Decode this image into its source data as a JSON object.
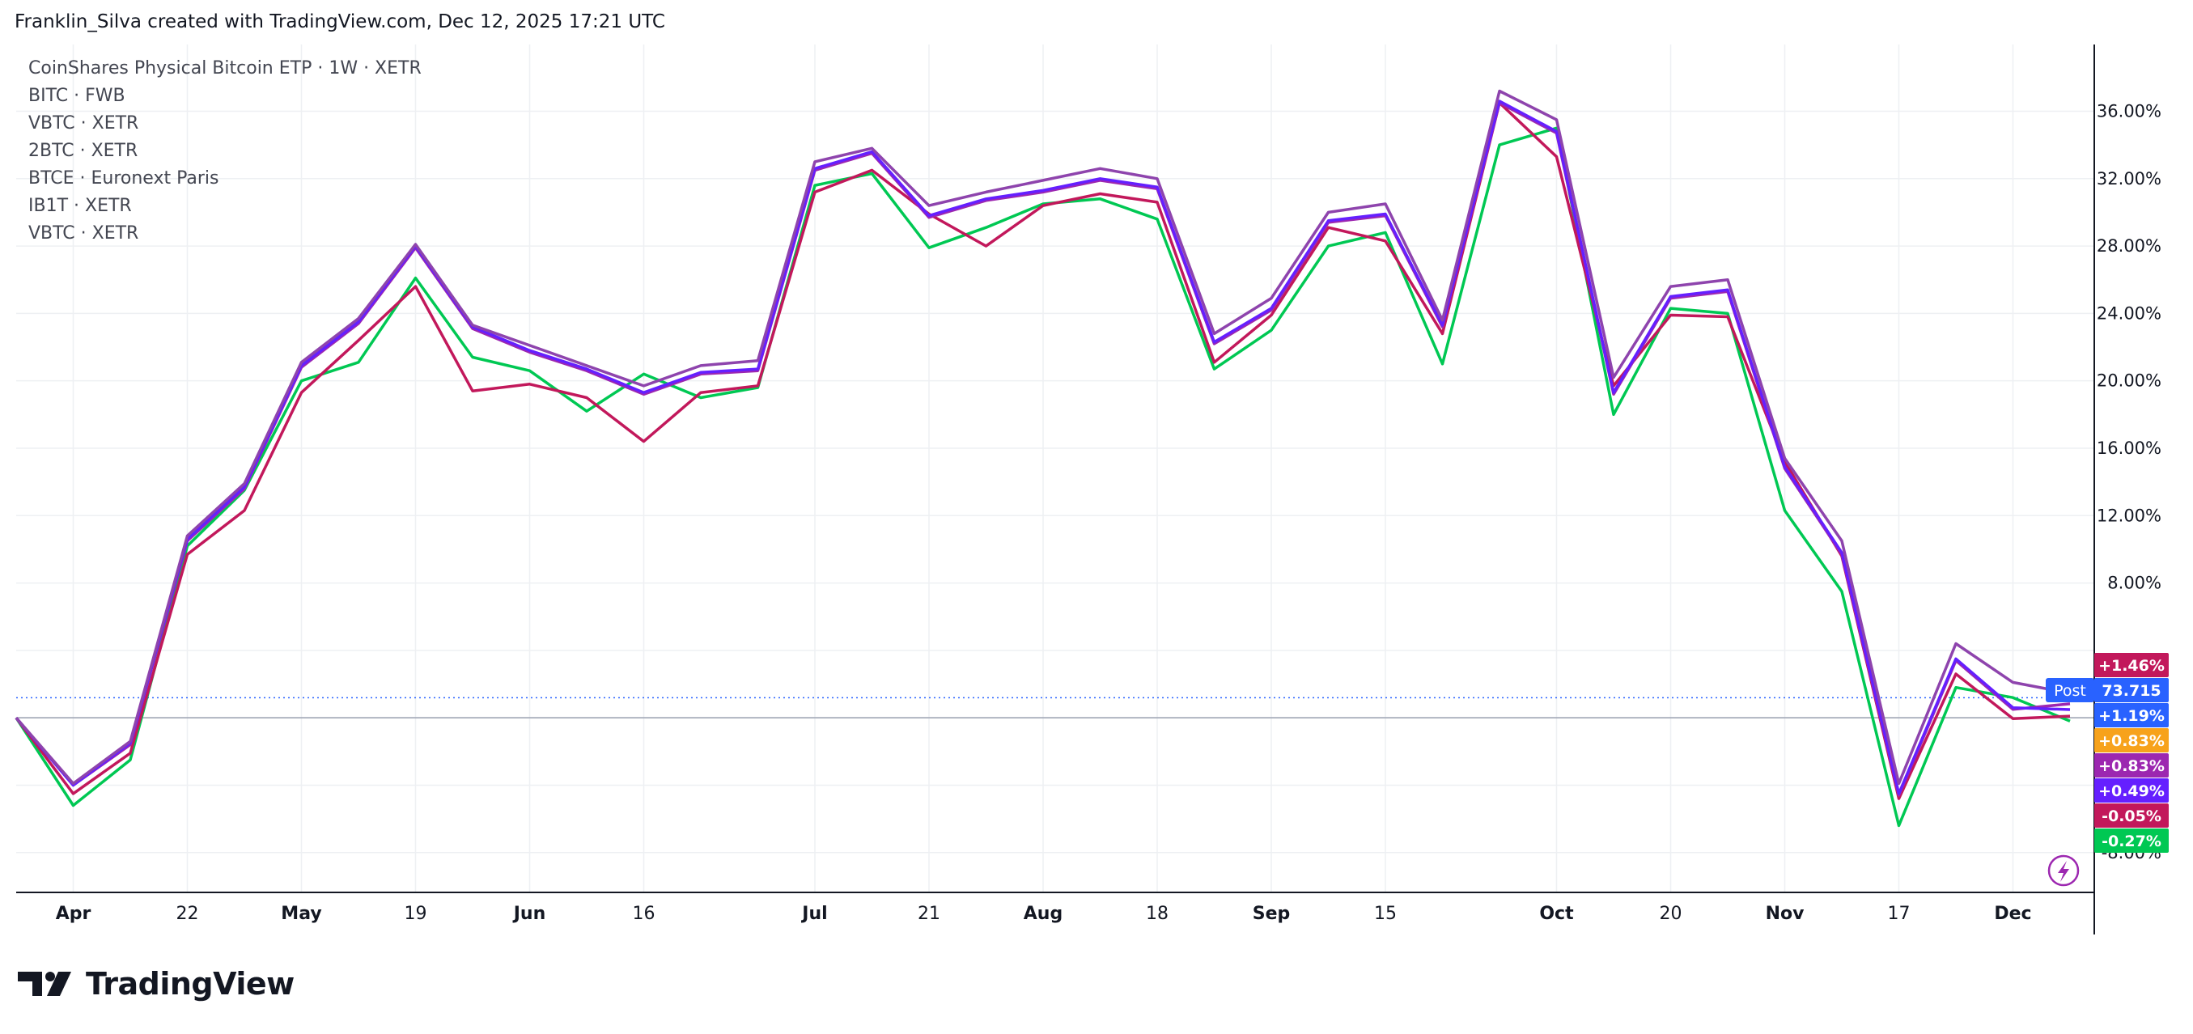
{
  "header": {
    "attribution": "Franklin_Silva created with TradingView.com, Dec 12, 2025 17:21 UTC"
  },
  "brand": {
    "name": "TradingView"
  },
  "legend": [
    "CoinShares Physical Bitcoin ETP · 1W · XETR",
    "BITC · FWB",
    "VBTC · XETR",
    "2BTC · XETR",
    "BTCE · Euronext Paris",
    "IB1T · XETR",
    "VBTC · XETR"
  ],
  "post_label": {
    "label": "Post",
    "value": "73.715"
  },
  "price_badges": [
    {
      "text": "+1.46%",
      "color": "#c2185b"
    },
    {
      "text": "+1.19%",
      "color": "#2962ff"
    },
    {
      "text": "+0.83%",
      "color": "#f7a21b"
    },
    {
      "text": "+0.83%",
      "color": "#9c27b0"
    },
    {
      "text": "+0.49%",
      "color": "#651fff"
    },
    {
      "text": "-0.05%",
      "color": "#c2185b"
    },
    {
      "text": "-0.27%",
      "color": "#00c853"
    }
  ],
  "chart_data": {
    "type": "line",
    "ylim": [
      -9.5,
      39
    ],
    "y_ticks": [
      "36.00%",
      "32.00%",
      "28.00%",
      "24.00%",
      "20.00%",
      "16.00%",
      "12.00%",
      "8.00%",
      "-8.00%"
    ],
    "y_tick_values": [
      36,
      32,
      28,
      24,
      20,
      16,
      12,
      8,
      -8
    ],
    "x_tick_labels": [
      "Apr",
      "22",
      "May",
      "19",
      "Jun",
      "16",
      "Jul",
      "21",
      "Aug",
      "18",
      "Sep",
      "15",
      "Oct",
      "20",
      "Nov",
      "17",
      "Dec"
    ],
    "x_tick_bold": [
      true,
      false,
      true,
      false,
      true,
      false,
      true,
      false,
      true,
      false,
      true,
      false,
      true,
      false,
      true,
      false,
      true
    ],
    "x_tick_index": [
      1,
      3,
      5,
      7,
      9,
      11,
      14,
      16,
      18,
      20,
      22,
      24,
      27,
      29,
      31,
      33,
      35
    ],
    "zero_line": 0,
    "reference_line": 1.19,
    "series": [
      {
        "color": "#00c853",
        "values": [
          0,
          -5.2,
          -2.5,
          10.2,
          13.5,
          20,
          21.1,
          26.1,
          21.4,
          20.6,
          18.2,
          20.4,
          19,
          19.6,
          31.6,
          32.3,
          27.9,
          29.1,
          30.5,
          30.8,
          29.6,
          20.7,
          23,
          28,
          28.8,
          21,
          34,
          35,
          18,
          24.3,
          24,
          12.3,
          7.5,
          -6.4,
          1.8,
          1.2,
          -0.2
        ]
      },
      {
        "color": "#c2185b",
        "values": [
          0,
          -4.5,
          -2.1,
          9.7,
          12.3,
          19.3,
          22.4,
          25.6,
          19.4,
          19.8,
          19,
          16.4,
          19.3,
          19.7,
          31.2,
          32.5,
          29.9,
          28,
          30.4,
          31.1,
          30.6,
          21.1,
          23.9,
          29.1,
          28.3,
          22.8,
          36.5,
          33.3,
          19.7,
          23.9,
          23.8,
          15.2,
          9.6,
          -4.8,
          2.6,
          -0.05,
          0.1
        ]
      },
      {
        "color": "#9c27b0",
        "values": [
          0,
          -4,
          -1.6,
          10.5,
          13.6,
          20.8,
          23.4,
          27.9,
          23.1,
          21.7,
          20.6,
          19.2,
          20.4,
          20.6,
          32.5,
          33.5,
          29.7,
          30.7,
          31.2,
          31.9,
          31.4,
          22.2,
          24.2,
          29.4,
          29.8,
          23.2,
          36.5,
          34.7,
          19.2,
          24.9,
          25.3,
          14.8,
          9.7,
          -4.6,
          3.4,
          0.5,
          0.83
        ]
      },
      {
        "color": "#651fff",
        "values": [
          0,
          -4,
          -1.5,
          10.6,
          13.7,
          20.9,
          23.5,
          28,
          23.2,
          21.8,
          20.7,
          19.3,
          20.5,
          20.7,
          32.6,
          33.6,
          29.8,
          30.8,
          31.3,
          32,
          31.5,
          22.3,
          24.3,
          29.5,
          29.9,
          23.3,
          36.6,
          34.8,
          19.3,
          25,
          25.4,
          14.9,
          9.8,
          -4.5,
          3.5,
          0.6,
          0.49
        ]
      },
      {
        "color": "#8e44ad",
        "values": [
          0,
          -3.9,
          -1.4,
          10.8,
          13.9,
          21.1,
          23.7,
          28.1,
          23.3,
          22.1,
          20.9,
          19.7,
          20.9,
          21.2,
          33,
          33.8,
          30.4,
          31.2,
          31.9,
          32.6,
          32,
          22.8,
          24.9,
          30,
          30.5,
          23.6,
          37.2,
          35.5,
          20.2,
          25.6,
          26,
          15.4,
          10.5,
          -3.9,
          4.4,
          2.1,
          1.46
        ]
      }
    ]
  }
}
